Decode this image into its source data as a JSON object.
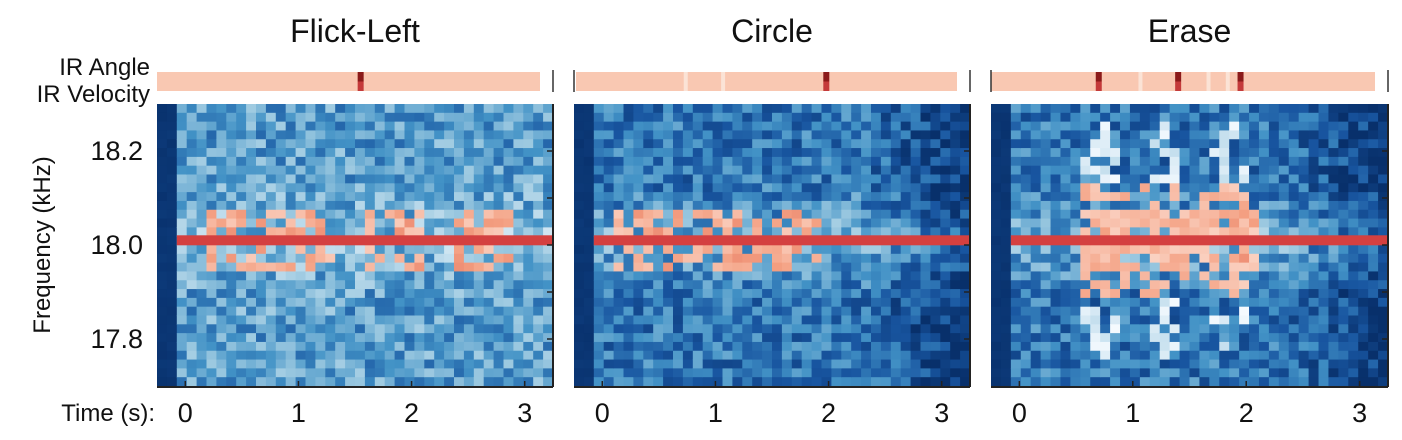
{
  "figure": {
    "ir_row_labels": [
      "IR Angle",
      "IR Velocity"
    ],
    "ylabel": "Frequency (kHz)",
    "xlabel": "Time (s):"
  },
  "colors": {
    "ir_base": "#f9c8b2",
    "ir_light": "#fbe3d6",
    "ir_event": "#8b1a1a",
    "ir_event_low": "#c43a3a",
    "spec_background": "#08386b",
    "spec_tone": "#d44040"
  },
  "chart_data": [
    {
      "type": "heatmap",
      "title": "Flick-Left",
      "x_ticks": [
        0,
        1,
        2,
        3
      ],
      "y_ticks": [
        17.8,
        18.0,
        18.2
      ],
      "y_tick_labels": [
        "17.8",
        "18.0",
        "18.2"
      ],
      "xlim": [
        -0.25,
        3.25
      ],
      "ylim": [
        17.7,
        18.3
      ],
      "carrier_khz": 18.01,
      "ir_events_s": [
        1.55
      ],
      "activity_regions_s": [
        [
          0.2,
          1.3
        ],
        [
          1.6,
          2.1
        ],
        [
          2.4,
          2.9
        ]
      ],
      "noise_level": "light"
    },
    {
      "type": "heatmap",
      "title": "Circle",
      "x_ticks": [
        0,
        1,
        2,
        3
      ],
      "y_ticks": [
        17.8,
        18.0,
        18.2
      ],
      "y_tick_labels": [
        "",
        "",
        ""
      ],
      "xlim": [
        -0.25,
        3.25
      ],
      "ylim": [
        17.7,
        18.3
      ],
      "carrier_khz": 18.01,
      "ir_events_s": [
        1.98
      ],
      "activity_regions_s": [
        [
          0.1,
          1.9
        ]
      ],
      "noise_level": "dark"
    },
    {
      "type": "heatmap",
      "title": "Erase",
      "x_ticks": [
        0,
        1,
        2,
        3
      ],
      "y_ticks": [
        17.8,
        18.0,
        18.2
      ],
      "y_tick_labels": [
        "",
        "",
        ""
      ],
      "xlim": [
        -0.25,
        3.25
      ],
      "ylim": [
        17.7,
        18.3
      ],
      "carrier_khz": 18.01,
      "ir_events_s": [
        0.7,
        1.4,
        1.95
      ],
      "activity_regions_s": [
        [
          0.5,
          2.1
        ]
      ],
      "noise_level": "dark"
    }
  ]
}
